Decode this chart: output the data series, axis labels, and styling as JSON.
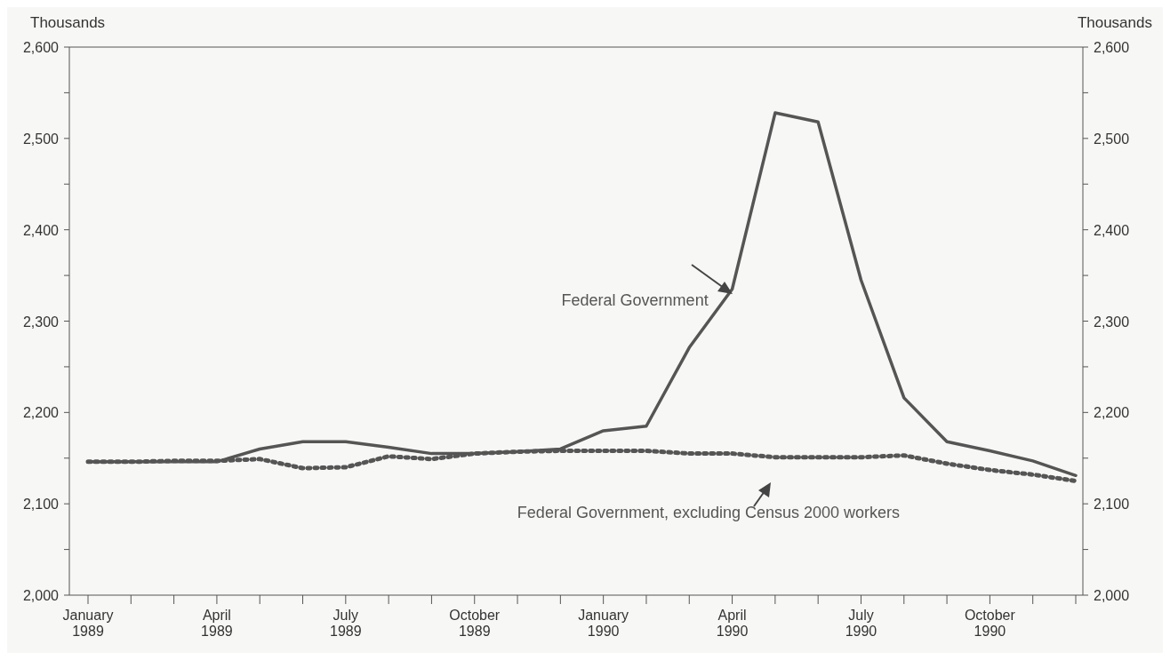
{
  "chart_data": {
    "type": "line",
    "ylabel": "Thousands",
    "y2label": "Thousands",
    "categories": [
      "January\n1989",
      null,
      null,
      "April\n1989",
      null,
      null,
      "July\n1989",
      null,
      null,
      "October\n1989",
      null,
      null,
      "January\n1990",
      null,
      null,
      "April\n1990",
      null,
      null,
      "July\n1990",
      null,
      null,
      "October\n1990",
      null,
      null
    ],
    "series": [
      {
        "name": "Federal Government",
        "color": "#555555",
        "line_style": "solid",
        "values": [
          2146,
          2146,
          2146,
          2146,
          2160,
          2168,
          2168,
          2162,
          2155,
          2155,
          2157,
          2160,
          2180,
          2185,
          2271,
          2335,
          2528,
          2518,
          2345,
          2216,
          2168,
          2158,
          2147,
          2131
        ]
      },
      {
        "name": "Federal Government, excluding Census 2000 workers",
        "color": "#555555",
        "line_style": "dotted",
        "values": [
          2146,
          2146,
          2147,
          2147,
          2149,
          2139,
          2140,
          2152,
          2149,
          2155,
          2157,
          2158,
          2158,
          2158,
          2155,
          2155,
          2151,
          2151,
          2151,
          2153,
          2144,
          2137,
          2132,
          2125
        ]
      }
    ],
    "ylim": [
      2000,
      2600
    ],
    "yticks": [
      {
        "value": 2000,
        "label": "2,000"
      },
      {
        "value": 2050,
        "label": null
      },
      {
        "value": 2100,
        "label": "2,100"
      },
      {
        "value": 2150,
        "label": null
      },
      {
        "value": 2200,
        "label": "2,200"
      },
      {
        "value": 2250,
        "label": null
      },
      {
        "value": 2300,
        "label": "2,300"
      },
      {
        "value": 2350,
        "label": null
      },
      {
        "value": 2400,
        "label": "2,400"
      },
      {
        "value": 2450,
        "label": null
      },
      {
        "value": 2500,
        "label": "2,500"
      },
      {
        "value": 2550,
        "label": null
      },
      {
        "value": 2600,
        "label": "2,600"
      }
    ],
    "y2lim": [
      2000,
      2600
    ],
    "y2ticks": [
      {
        "value": 2000,
        "label": "2,000"
      },
      {
        "value": 2050,
        "label": null
      },
      {
        "value": 2100,
        "label": "2,100"
      },
      {
        "value": 2150,
        "label": null
      },
      {
        "value": 2200,
        "label": "2,200"
      },
      {
        "value": 2250,
        "label": null
      },
      {
        "value": 2300,
        "label": "2,300"
      },
      {
        "value": 2350,
        "label": null
      },
      {
        "value": 2400,
        "label": "2,400"
      },
      {
        "value": 2450,
        "label": null
      },
      {
        "value": 2500,
        "label": "2,500"
      },
      {
        "value": 2550,
        "label": null
      },
      {
        "value": 2600,
        "label": "2,600"
      }
    ],
    "marker": "none"
  }
}
